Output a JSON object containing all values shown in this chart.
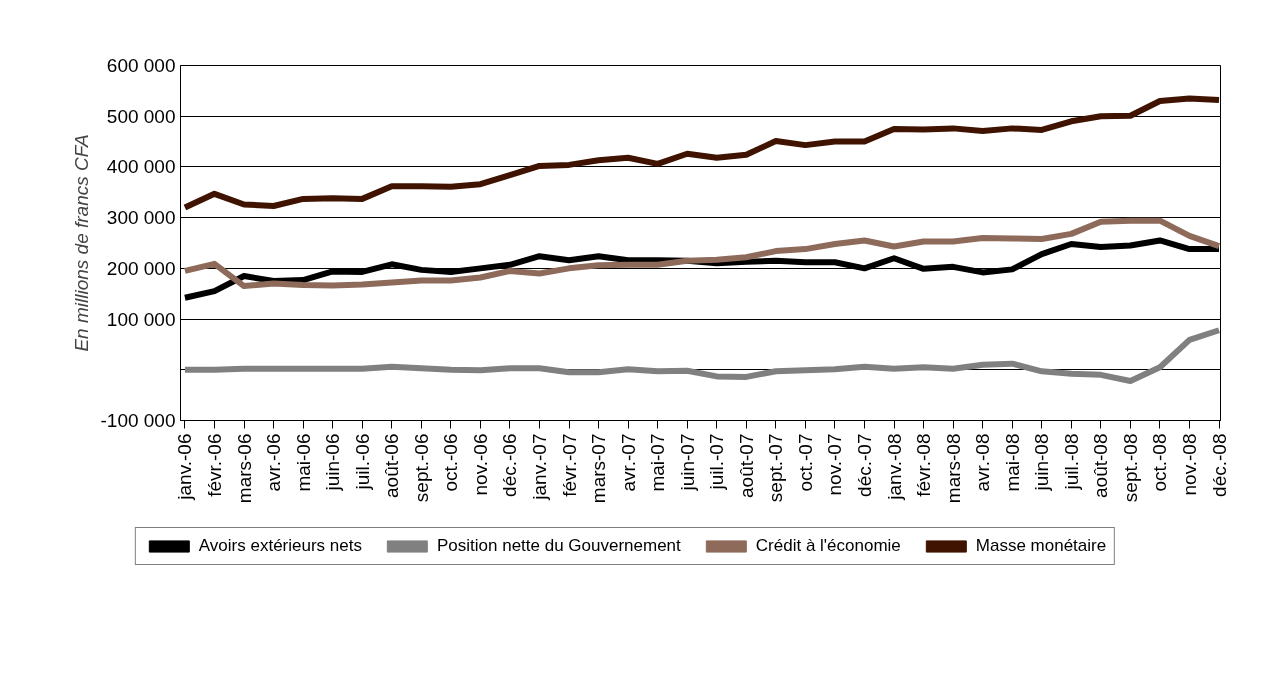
{
  "chart_data": {
    "type": "line",
    "ylabel": "En millions de francs CFA",
    "categories": [
      "janv.-06",
      "févr.-06",
      "mars-06",
      "avr.-06",
      "mai-06",
      "juin-06",
      "juil.-06",
      "août-06",
      "sept.-06",
      "oct.-06",
      "nov.-06",
      "déc.-06",
      "janv.-07",
      "févr.-07",
      "mars-07",
      "avr.-07",
      "mai-07",
      "juin-07",
      "juil.-07",
      "août-07",
      "sept.-07",
      "oct.-07",
      "nov.-07",
      "déc.-07",
      "janv.-08",
      "févr.-08",
      "mars-08",
      "avr.-08",
      "mai-08",
      "juin-08",
      "juil.-08",
      "août-08",
      "sept.-08",
      "oct.-08",
      "nov.-08",
      "déc.-08"
    ],
    "series": [
      {
        "name": "Avoirs extérieurs nets",
        "color": "#000000",
        "values": [
          142000,
          155000,
          185000,
          175000,
          177000,
          194000,
          193000,
          208000,
          197000,
          193000,
          200000,
          207000,
          224000,
          216000,
          224000,
          216000,
          216000,
          215000,
          210000,
          213000,
          215000,
          212000,
          212000,
          200000,
          220000,
          199000,
          203000,
          192000,
          198000,
          228000,
          248000,
          242000,
          245000,
          255000,
          238000,
          238000
        ]
      },
      {
        "name": "Position nette du Gouvernement",
        "color": "#808080",
        "values": [
          0,
          0,
          2000,
          2000,
          2000,
          2000,
          2000,
          6000,
          3000,
          0,
          -1000,
          3000,
          3000,
          -5000,
          -5000,
          1000,
          -3000,
          -2000,
          -13000,
          -14000,
          -3000,
          -1000,
          1000,
          6000,
          2000,
          5000,
          2000,
          10000,
          12000,
          -3000,
          -8000,
          -10000,
          -22000,
          5000,
          59000,
          78000
        ]
      },
      {
        "name": "Crédit à l'économie",
        "color": "#8e6a5a",
        "values": [
          195000,
          209000,
          165000,
          170000,
          167000,
          166000,
          168000,
          172000,
          176000,
          176000,
          182000,
          195000,
          190000,
          200000,
          206000,
          207000,
          207000,
          215000,
          217000,
          222000,
          234000,
          238000,
          248000,
          255000,
          243000,
          253000,
          253000,
          260000,
          259000,
          258000,
          268000,
          292000,
          294000,
          294000,
          264000,
          244000
        ]
      },
      {
        "name": "Masse monétaire",
        "color": "#3f1300",
        "values": [
          320000,
          347000,
          326000,
          323000,
          337000,
          338000,
          337000,
          362000,
          362000,
          361000,
          366000,
          384000,
          402000,
          404000,
          413000,
          418000,
          406000,
          426000,
          418000,
          424000,
          451000,
          443000,
          450000,
          450000,
          475000,
          474000,
          476000,
          471000,
          476000,
          473000,
          490000,
          500000,
          501000,
          530000,
          535000,
          532000
        ]
      }
    ],
    "ylim": [
      -100000,
      600000
    ],
    "yticks": [
      {
        "value": -100000,
        "label": "-100 000"
      },
      {
        "value": 0,
        "label": null
      },
      {
        "value": 100000,
        "label": "100 000"
      },
      {
        "value": 200000,
        "label": "200 000"
      },
      {
        "value": 300000,
        "label": "300 000"
      },
      {
        "value": 400000,
        "label": "400 000"
      },
      {
        "value": 500000,
        "label": "500 000"
      },
      {
        "value": 600000,
        "label": "600 000"
      }
    ],
    "grid": "y",
    "legend": "bottom",
    "marker": "none",
    "line_style": "solid"
  }
}
